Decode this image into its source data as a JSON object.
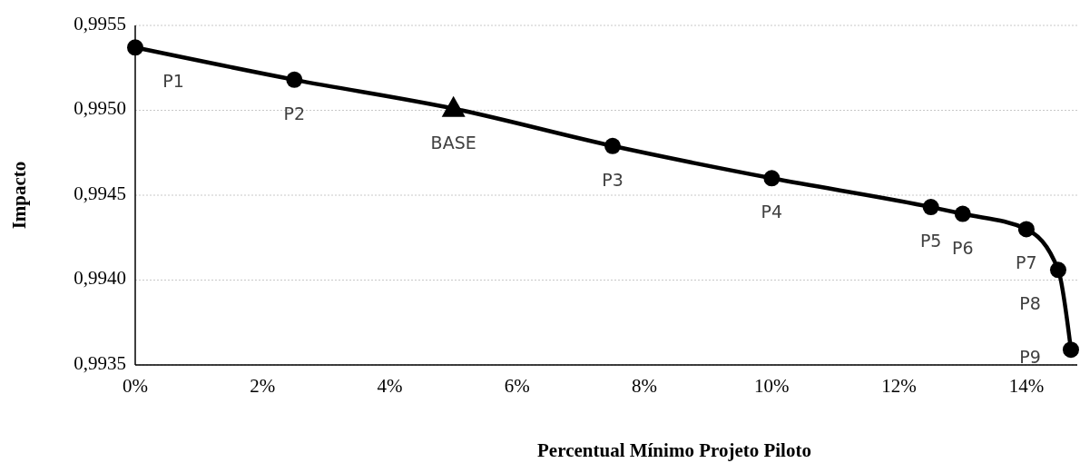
{
  "chart_data": {
    "type": "line",
    "xlabel": "Percentual Mínimo Projeto Piloto",
    "ylabel": "Impacto",
    "xlim": [
      0,
      14.8
    ],
    "xticks": [
      {
        "value": 0,
        "label": "0%"
      },
      {
        "value": 2,
        "label": "2%"
      },
      {
        "value": 4,
        "label": "4%"
      },
      {
        "value": 6,
        "label": "6%"
      },
      {
        "value": 8,
        "label": "8%"
      },
      {
        "value": 10,
        "label": "10%"
      },
      {
        "value": 12,
        "label": "12%"
      },
      {
        "value": 14,
        "label": "14%"
      }
    ],
    "ylim": [
      0.9935,
      0.9955
    ],
    "yticks": [
      {
        "value": 0.9935,
        "label": "0,9935"
      },
      {
        "value": 0.994,
        "label": "0,9940"
      },
      {
        "value": 0.9945,
        "label": "0,9945"
      },
      {
        "value": 0.995,
        "label": "0,9950"
      },
      {
        "value": 0.9955,
        "label": "0,9955"
      }
    ],
    "grid": "y",
    "series": [
      {
        "type": "line",
        "color": "#000000",
        "marker": "none",
        "x": [
          0,
          2.5,
          5,
          7.5,
          10,
          12.5,
          13,
          14,
          14.5,
          14.7
        ],
        "values": [
          0.99537,
          0.99518,
          0.99501,
          0.99479,
          0.9946,
          0.99443,
          0.99439,
          0.9943,
          0.99406,
          0.99359
        ]
      },
      {
        "type": "scatter",
        "color": "#000000",
        "marker": "circle",
        "x": [
          0,
          2.5,
          7.5,
          10,
          12.5,
          13,
          14,
          14.5,
          14.7
        ],
        "values": [
          0.99537,
          0.99518,
          0.99479,
          0.9946,
          0.99443,
          0.99439,
          0.9943,
          0.99406,
          0.99359
        ]
      },
      {
        "type": "scatter",
        "color": "#000000",
        "marker": "triangle",
        "x": [
          5
        ],
        "values": [
          0.99501
        ]
      }
    ],
    "annotations": [
      {
        "text": "P1",
        "x": 0,
        "y": 0.99537
      },
      {
        "text": "P2",
        "x": 2.5,
        "y": 0.99518
      },
      {
        "text": "BASE",
        "x": 5,
        "y": 0.99501
      },
      {
        "text": "P3",
        "x": 7.5,
        "y": 0.99479
      },
      {
        "text": "P4",
        "x": 10,
        "y": 0.9946
      },
      {
        "text": "P5",
        "x": 12.5,
        "y": 0.99443
      },
      {
        "text": "P6",
        "x": 13,
        "y": 0.99439
      },
      {
        "text": "P7",
        "x": 14,
        "y": 0.9943
      },
      {
        "text": "P8",
        "x": 14.5,
        "y": 0.99406
      },
      {
        "text": "P9",
        "x": 14.7,
        "y": 0.99359
      }
    ]
  }
}
